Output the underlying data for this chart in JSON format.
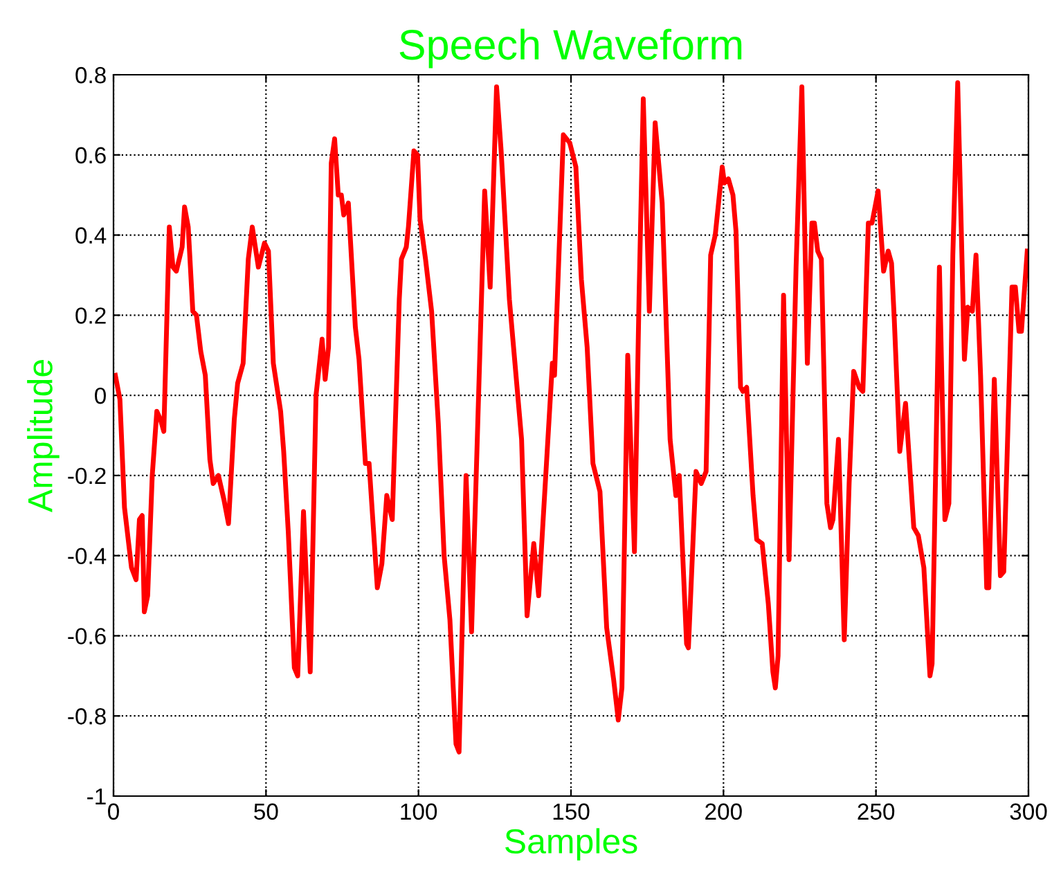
{
  "chart_data": {
    "type": "line",
    "title": "Speech Waveform",
    "xlabel": "Samples",
    "ylabel": "Amplitude",
    "series": [
      {
        "color": "#ff0000",
        "x": [
          0.6,
          2.1,
          3.6,
          5.9,
          7.4,
          8.5,
          9.4,
          10.1,
          11.2,
          12.7,
          14.2,
          15.4,
          16.5,
          18.3,
          19.5,
          20.6,
          22.5,
          23.3,
          24.5,
          26,
          27.2,
          28.6,
          30.1,
          31.6,
          32.7,
          34.4,
          36.2,
          37.7,
          39.6,
          40.7,
          42.5,
          44.2,
          45.5,
          47.5,
          49.5,
          50.8,
          52.4,
          54.8,
          55.8,
          57.3,
          59.3,
          60.4,
          62.3,
          64.5,
          66.4,
          68.4,
          69.4,
          70.5,
          71.4,
          72.5,
          73.7,
          74.7,
          75.5,
          77,
          79.3,
          80.5,
          82.6,
          83.8,
          86.5,
          88,
          89.6,
          91.4,
          93.7,
          94.4,
          96,
          96.7,
          98.5,
          99.7,
          100.5,
          102.3,
          104.3,
          106.5,
          108.4,
          110.3,
          112.3,
          113.3,
          115.6,
          117.4,
          121.7,
          123.5,
          125.6,
          127.1,
          129.8,
          133.8,
          135.6,
          137.8,
          139.4,
          143.9,
          144.6,
          147.5,
          149.6,
          151.6,
          153.4,
          155.3,
          157.2,
          159.5,
          161.7,
          164,
          165.5,
          166.7,
          168.6,
          170.8,
          172.3,
          173.7,
          175.7,
          177.6,
          179.9,
          182.5,
          184.4,
          185.5,
          187.9,
          188.5,
          191,
          192.7,
          194.3,
          195.8,
          197.3,
          199.6,
          200.3,
          201.6,
          203.1,
          204.1,
          205.6,
          206.4,
          207.6,
          209.7,
          210.9,
          212.7,
          214.7,
          216.2,
          217,
          217.9,
          219.7,
          221.5,
          223.8,
          225.7,
          227.5,
          229,
          229.8,
          230.9,
          232.1,
          233.9,
          235.1,
          235.9,
          237.7,
          239.6,
          241.2,
          242.7,
          244.5,
          245.7,
          247.5,
          248.7,
          250.7,
          252.5,
          254,
          255.1,
          256,
          257.8,
          259.7,
          262.4,
          263.9,
          265.7,
          267.7,
          268.4,
          270.8,
          272.6,
          273.9,
          275.2,
          276.8,
          279,
          280.1,
          281.6,
          282.8,
          284.3,
          286.3,
          287,
          288.8,
          290.8,
          291.9,
          294.6,
          295.7,
          296.9,
          297.7,
          299.6
        ],
        "values": [
          0.05,
          -0.01,
          -0.28,
          -0.43,
          -0.46,
          -0.31,
          -0.3,
          -0.54,
          -0.5,
          -0.2,
          -0.04,
          -0.06,
          -0.09,
          0.42,
          0.32,
          0.31,
          0.37,
          0.47,
          0.42,
          0.21,
          0.2,
          0.11,
          0.05,
          -0.16,
          -0.22,
          -0.2,
          -0.26,
          -0.32,
          -0.06,
          0.03,
          0.08,
          0.34,
          0.42,
          0.32,
          0.38,
          0.36,
          0.08,
          -0.04,
          -0.14,
          -0.34,
          -0.68,
          -0.7,
          -0.29,
          -0.69,
          0.0,
          0.14,
          0.04,
          0.12,
          0.58,
          0.64,
          0.5,
          0.5,
          0.45,
          0.48,
          0.17,
          0.09,
          -0.17,
          -0.17,
          -0.48,
          -0.42,
          -0.25,
          -0.31,
          0.24,
          0.34,
          0.37,
          0.42,
          0.61,
          0.6,
          0.44,
          0.34,
          0.21,
          -0.07,
          -0.4,
          -0.56,
          -0.87,
          -0.89,
          -0.2,
          -0.59,
          0.51,
          0.27,
          0.77,
          0.61,
          0.24,
          -0.11,
          -0.55,
          -0.37,
          -0.5,
          0.08,
          0.05,
          0.65,
          0.63,
          0.57,
          0.29,
          0.12,
          -0.17,
          -0.24,
          -0.58,
          -0.71,
          -0.81,
          -0.73,
          0.1,
          -0.39,
          0.24,
          0.74,
          0.21,
          0.68,
          0.48,
          -0.11,
          -0.25,
          -0.2,
          -0.62,
          -0.63,
          -0.19,
          -0.22,
          -0.19,
          0.35,
          0.4,
          0.57,
          0.53,
          0.54,
          0.5,
          0.41,
          0.02,
          0.01,
          0.02,
          -0.25,
          -0.36,
          -0.37,
          -0.52,
          -0.69,
          -0.73,
          -0.65,
          0.25,
          -0.41,
          0.32,
          0.77,
          0.08,
          0.43,
          0.43,
          0.36,
          0.34,
          -0.27,
          -0.33,
          -0.31,
          -0.11,
          -0.61,
          -0.22,
          0.06,
          0.02,
          0.01,
          0.43,
          0.43,
          0.51,
          0.31,
          0.36,
          0.33,
          0.19,
          -0.14,
          -0.02,
          -0.33,
          -0.35,
          -0.43,
          -0.7,
          -0.67,
          0.32,
          -0.31,
          -0.27,
          0.35,
          0.78,
          0.09,
          0.22,
          0.21,
          0.35,
          0.05,
          -0.48,
          -0.48,
          0.04,
          -0.45,
          -0.44,
          0.27,
          0.27,
          0.16,
          0.16,
          0.36
        ]
      }
    ],
    "xlim": [
      0,
      300
    ],
    "xticks": [
      0,
      50,
      100,
      150,
      200,
      250,
      300
    ],
    "ylim": [
      -1,
      0.8
    ],
    "yticks": [
      -1,
      -0.8,
      -0.6,
      -0.4,
      -0.2,
      0,
      0.2,
      0.4,
      0.6,
      0.8
    ],
    "grid": true,
    "marker": "none",
    "line_style": "solid"
  }
}
